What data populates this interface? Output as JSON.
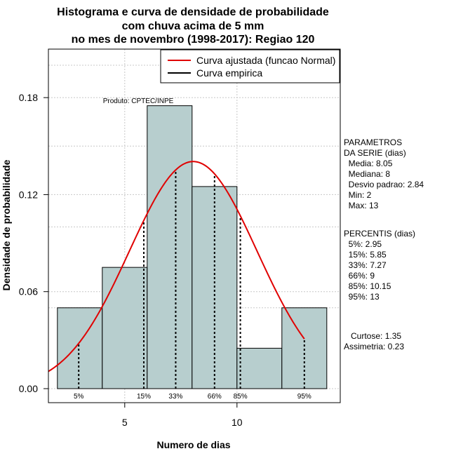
{
  "chart_data": {
    "type": "bar",
    "title": [
      "Histograma e curva de densidade de probabilidade",
      "com chuva acima de 5 mm",
      "no mes de novembro (1998-2017): Regiao 120"
    ],
    "xlabel": "Numero de dias",
    "ylabel": "Densidade de probabilidade",
    "xlim": [
      1.6,
      14.6
    ],
    "ylim": [
      0.0,
      0.21
    ],
    "xticks": [
      5,
      10
    ],
    "yticks": [
      0.0,
      0.06,
      0.12,
      0.18
    ],
    "ytick_labels": [
      "0.00",
      "0.06",
      "0.12",
      "0.18"
    ],
    "bins": [
      {
        "from": 2,
        "to": 4,
        "density": 0.05
      },
      {
        "from": 4,
        "to": 6,
        "density": 0.075
      },
      {
        "from": 6,
        "to": 8,
        "density": 0.175
      },
      {
        "from": 8,
        "to": 10,
        "density": 0.125
      },
      {
        "from": 10,
        "to": 12,
        "density": 0.025
      },
      {
        "from": 12,
        "to": 14,
        "density": 0.05
      }
    ],
    "bar_color": "#b7cece",
    "normal_curve": {
      "mean": 8.05,
      "sd": 2.84,
      "x_from": 1.6,
      "x_to": 13.0,
      "color": "#e00000"
    },
    "percentile_lines": [
      {
        "label": "5%",
        "x": 2.95
      },
      {
        "label": "15%",
        "x": 5.85
      },
      {
        "label": "33%",
        "x": 7.27
      },
      {
        "label": "66%",
        "x": 9
      },
      {
        "label": "85%",
        "x": 10.15
      },
      {
        "label": "95%",
        "x": 13
      }
    ],
    "legend": [
      {
        "label": "Curva ajustada (funcao Normal)",
        "color": "#e00000"
      },
      {
        "label": "Curva empirica",
        "color": "#000000"
      }
    ],
    "annotation": "Produto: CPTEC/INPE",
    "grid": true
  },
  "side_panel": {
    "parametros_lines": [
      "PARAMETROS",
      "DA SERIE (dias)",
      "  Media: 8.05",
      "  Mediana: 8",
      "  Desvio padrao: 2.84",
      "  Min: 2",
      "  Max: 13"
    ],
    "percentis_lines": [
      "PERCENTIS (dias)",
      "  5%: 2.95",
      "  15%: 5.85",
      "  33%: 7.27",
      "  66%: 9",
      "  85%: 10.15",
      "  95%: 13"
    ],
    "extra_lines": [
      "   Curtose: 1.35",
      "Assimetria: 0.23"
    ]
  }
}
